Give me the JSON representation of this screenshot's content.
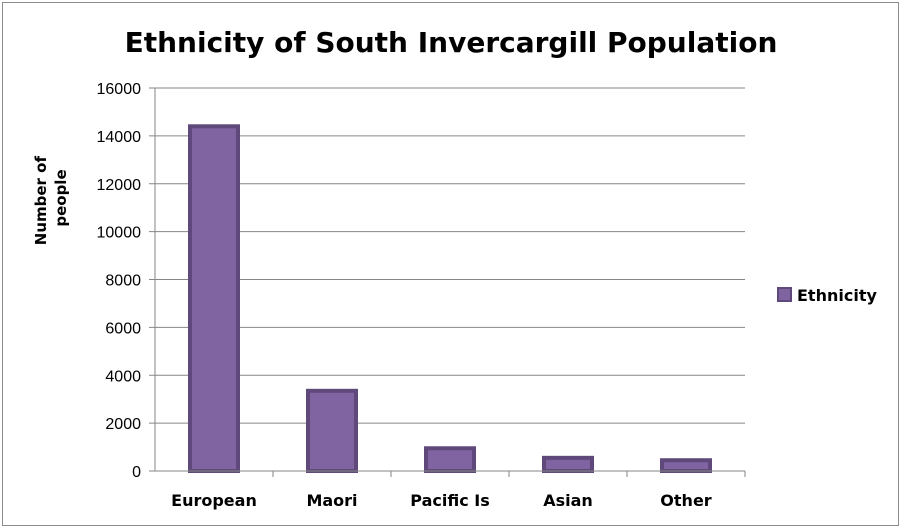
{
  "chart_data": {
    "type": "bar",
    "title": "Ethnicity of South Invercargill Population",
    "ylabel_lines": [
      "Number of",
      "people"
    ],
    "xlabel": "",
    "categories": [
      "European",
      "Maori",
      "Pacific Is",
      "Asian",
      "Other"
    ],
    "series": [
      {
        "name": "Ethnicity",
        "values": [
          14400,
          3350,
          950,
          550,
          450
        ],
        "color": "#8064a2",
        "edge_color": "#5f497a"
      }
    ],
    "ylim": [
      0,
      16000
    ],
    "yticks": [
      "0",
      "2000",
      "4000",
      "6000",
      "8000",
      "10000",
      "12000",
      "14000",
      "16000"
    ],
    "grid": true,
    "legend_position": "right"
  }
}
